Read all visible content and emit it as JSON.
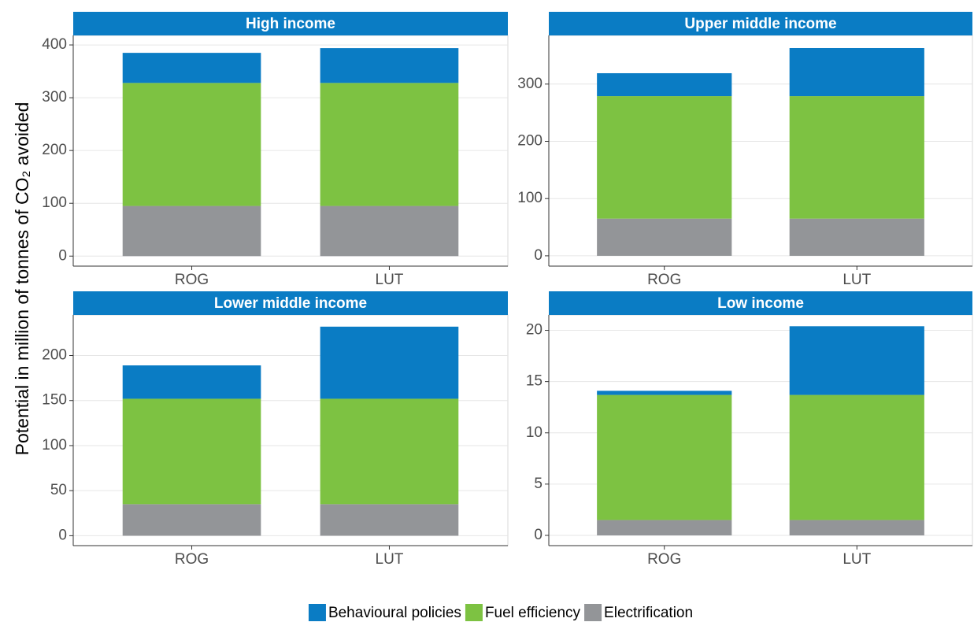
{
  "ylabel": "Potential in million of tonnes of CO₂ avoided",
  "legend_position": "bottom",
  "chart_data": [
    {
      "type": "bar",
      "stacked": true,
      "title": "High income",
      "categories": [
        "ROG",
        "LUT"
      ],
      "series": [
        {
          "name": "Electrification",
          "color": "#939598",
          "values": [
            95,
            95
          ]
        },
        {
          "name": "Fuel efficiency",
          "color": "#7dc242",
          "values": [
            233,
            233
          ]
        },
        {
          "name": "Behavioural policies",
          "color": "#0a7cc4",
          "values": [
            57,
            66
          ]
        }
      ],
      "ylim": [
        -19,
        418
      ],
      "yticks": [
        0,
        100,
        200,
        300,
        400
      ],
      "grid": true
    },
    {
      "type": "bar",
      "stacked": true,
      "title": "Upper middle income",
      "categories": [
        "ROG",
        "LUT"
      ],
      "series": [
        {
          "name": "Electrification",
          "color": "#939598",
          "values": [
            65,
            65
          ]
        },
        {
          "name": "Fuel efficiency",
          "color": "#7dc242",
          "values": [
            214,
            214
          ]
        },
        {
          "name": "Behavioural policies",
          "color": "#0a7cc4",
          "values": [
            40,
            84
          ]
        }
      ],
      "ylim": [
        -18,
        385
      ],
      "yticks": [
        0,
        100,
        200,
        300
      ],
      "grid": true
    },
    {
      "type": "bar",
      "stacked": true,
      "title": "Lower middle income",
      "categories": [
        "ROG",
        "LUT"
      ],
      "series": [
        {
          "name": "Electrification",
          "color": "#939598",
          "values": [
            35,
            35
          ]
        },
        {
          "name": "Fuel efficiency",
          "color": "#7dc242",
          "values": [
            117,
            117
          ]
        },
        {
          "name": "Behavioural policies",
          "color": "#0a7cc4",
          "values": [
            37,
            80
          ]
        }
      ],
      "ylim": [
        -11,
        245
      ],
      "yticks": [
        0,
        50,
        100,
        150,
        200
      ],
      "grid": true
    },
    {
      "type": "bar",
      "stacked": true,
      "title": "Low income",
      "categories": [
        "ROG",
        "LUT"
      ],
      "series": [
        {
          "name": "Electrification",
          "color": "#939598",
          "values": [
            1.5,
            1.5
          ]
        },
        {
          "name": "Fuel efficiency",
          "color": "#7dc242",
          "values": [
            12.2,
            12.2
          ]
        },
        {
          "name": "Behavioural policies",
          "color": "#0a7cc4",
          "values": [
            0.4,
            6.7
          ]
        }
      ],
      "ylim": [
        -1,
        21.5
      ],
      "yticks": [
        0,
        5,
        10,
        15,
        20
      ],
      "grid": true
    }
  ]
}
